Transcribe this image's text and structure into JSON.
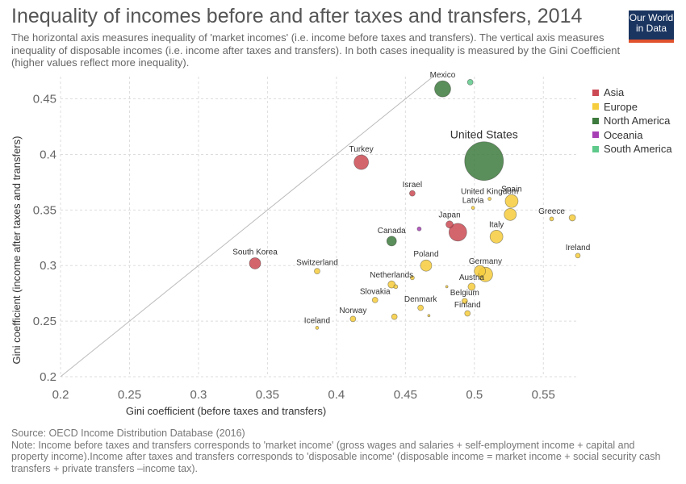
{
  "header": {
    "title": "Inequality of incomes before and after taxes and transfers, 2014",
    "subtitle": "The horizontal axis measures inequality of 'market incomes' (i.e. income before taxes and transfers). The vertical axis measures inequality of disposable incomes (i.e. income after taxes and transfers). In both cases inequality is measured by the Gini Coefficient (higher values reflect more inequality).",
    "logo_line1": "Our World",
    "logo_line2": "in Data"
  },
  "legend": [
    {
      "label": "Asia",
      "color": "#cb4a54"
    },
    {
      "label": "Europe",
      "color": "#f6cd3c"
    },
    {
      "label": "North America",
      "color": "#3d7a3d"
    },
    {
      "label": "Oceania",
      "color": "#a840b5"
    },
    {
      "label": "South America",
      "color": "#5ec98a"
    }
  ],
  "footer": {
    "source": "Source: OECD Income Distribution Database (2016)",
    "note": "Note: Income before taxes and transfers corresponds to 'market income' (gross wages and salaries + self-employment income + capital and property income).Income after taxes and transfers corresponds to 'disposable income' (disposable income = market income + social security cash transfers + private transfers –income tax)."
  },
  "chart_data": {
    "type": "scatter",
    "title": "Inequality of incomes before and after taxes and transfers, 2014",
    "xlabel": "Gini coefficient (before taxes and transfers)",
    "ylabel": "Gini coefficient (income after taxes and transfers)",
    "xlim": [
      0.2,
      0.575
    ],
    "ylim": [
      0.2,
      0.47
    ],
    "x_ticks": [
      "0.2",
      "0.25",
      "0.3",
      "0.35",
      "0.4",
      "0.45",
      "0.5",
      "0.55"
    ],
    "y_ticks": [
      "0.2",
      "0.25",
      "0.3",
      "0.35",
      "0.4",
      "0.45"
    ],
    "x_tick_values": [
      0.2,
      0.25,
      0.3,
      0.35,
      0.4,
      0.45,
      0.5,
      0.55
    ],
    "y_tick_values": [
      0.2,
      0.25,
      0.3,
      0.35,
      0.4,
      0.45
    ],
    "grid": true,
    "reference_line": "y = x",
    "legend_position": "top-right",
    "points": [
      {
        "label": "Mexico",
        "region": "North America",
        "x": 0.477,
        "y": 0.459,
        "size": 10
      },
      {
        "label": "",
        "region": "South America",
        "x": 0.497,
        "y": 0.465,
        "size": 3.5
      },
      {
        "label": "United States",
        "region": "North America",
        "x": 0.507,
        "y": 0.394,
        "size": 24
      },
      {
        "label": "Turkey",
        "region": "Asia",
        "x": 0.418,
        "y": 0.393,
        "size": 9
      },
      {
        "label": "Israel",
        "region": "Asia",
        "x": 0.455,
        "y": 0.365,
        "size": 3.5
      },
      {
        "label": "United Kingdom",
        "region": "Europe",
        "x": 0.511,
        "y": 0.36,
        "size": 2
      },
      {
        "label": "Latvia",
        "region": "Europe",
        "x": 0.499,
        "y": 0.352,
        "size": 2
      },
      {
        "label": "Spain",
        "region": "Europe",
        "x": 0.527,
        "y": 0.358,
        "size": 8
      },
      {
        "label": "",
        "region": "Europe",
        "x": 0.526,
        "y": 0.346,
        "size": 7.5
      },
      {
        "label": "Greece",
        "region": "Europe",
        "x": 0.556,
        "y": 0.342,
        "size": 2.5
      },
      {
        "label": "",
        "region": "Europe",
        "x": 0.571,
        "y": 0.343,
        "size": 4
      },
      {
        "label": "Japan",
        "region": "Asia",
        "x": 0.482,
        "y": 0.337,
        "size": 4.5
      },
      {
        "label": "",
        "region": "Asia",
        "x": 0.488,
        "y": 0.33,
        "size": 11
      },
      {
        "label": "",
        "region": "Oceania",
        "x": 0.46,
        "y": 0.333,
        "size": 2.5
      },
      {
        "label": "Italy",
        "region": "Europe",
        "x": 0.516,
        "y": 0.326,
        "size": 8
      },
      {
        "label": "Canada",
        "region": "North America",
        "x": 0.44,
        "y": 0.322,
        "size": 6
      },
      {
        "label": "Ireland",
        "region": "Europe",
        "x": 0.575,
        "y": 0.309,
        "size": 3
      },
      {
        "label": "South Korea",
        "region": "Asia",
        "x": 0.341,
        "y": 0.302,
        "size": 7
      },
      {
        "label": "Poland",
        "region": "Europe",
        "x": 0.465,
        "y": 0.3,
        "size": 7
      },
      {
        "label": "Switzerland",
        "region": "Europe",
        "x": 0.386,
        "y": 0.295,
        "size": 3.5
      },
      {
        "label": "Germany",
        "region": "Europe",
        "x": 0.508,
        "y": 0.292,
        "size": 9
      },
      {
        "label": "",
        "region": "Europe",
        "x": 0.504,
        "y": 0.295,
        "size": 7
      },
      {
        "label": "Netherlands",
        "region": "Europe",
        "x": 0.44,
        "y": 0.283,
        "size": 4.5
      },
      {
        "label": "",
        "region": "Europe",
        "x": 0.455,
        "y": 0.289,
        "size": 2.5
      },
      {
        "label": "",
        "region": "Europe",
        "x": 0.443,
        "y": 0.281,
        "size": 2.5
      },
      {
        "label": "Austria",
        "region": "Europe",
        "x": 0.498,
        "y": 0.281,
        "size": 4.5
      },
      {
        "label": "",
        "region": "Europe",
        "x": 0.48,
        "y": 0.281,
        "size": 1.5
      },
      {
        "label": "Slovakia",
        "region": "Europe",
        "x": 0.428,
        "y": 0.269,
        "size": 3.5
      },
      {
        "label": "Belgium",
        "region": "Europe",
        "x": 0.493,
        "y": 0.268,
        "size": 3.5
      },
      {
        "label": "Denmark",
        "region": "Europe",
        "x": 0.461,
        "y": 0.262,
        "size": 3.5
      },
      {
        "label": "Finland",
        "region": "Europe",
        "x": 0.495,
        "y": 0.257,
        "size": 3.5
      },
      {
        "label": "Norway",
        "region": "Europe",
        "x": 0.412,
        "y": 0.252,
        "size": 3.5
      },
      {
        "label": "",
        "region": "Europe",
        "x": 0.442,
        "y": 0.254,
        "size": 3.5
      },
      {
        "label": "",
        "region": "Europe",
        "x": 0.467,
        "y": 0.255,
        "size": 1.5
      },
      {
        "label": "Iceland",
        "region": "Europe",
        "x": 0.386,
        "y": 0.244,
        "size": 2
      }
    ]
  }
}
